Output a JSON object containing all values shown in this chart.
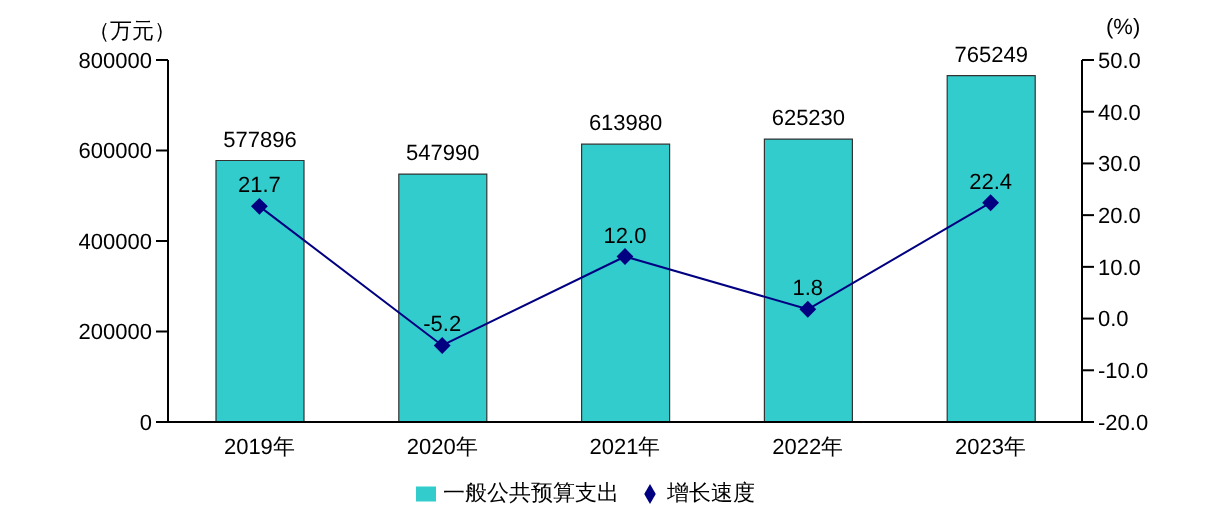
{
  "chart_data": {
    "type": "bar",
    "ylabel": "（万元）",
    "y2label": "(%)",
    "categories": [
      "2019年",
      "2020年",
      "2021年",
      "2022年",
      "2023年"
    ],
    "series": [
      {
        "name": "一般公共预算支出",
        "color": "#33cccc",
        "values": [
          577896,
          547990,
          613980,
          625230,
          765249
        ],
        "value_labels": [
          "577896",
          "547990",
          "613980",
          "625230",
          "765249"
        ]
      },
      {
        "name": "增长速度",
        "type": "line",
        "axis": "y2",
        "color": "#000080",
        "values": [
          21.7,
          -5.2,
          12.0,
          1.8,
          22.4
        ],
        "value_labels": [
          "21.7",
          "-5.2",
          "12.0",
          "1.8",
          "22.4"
        ]
      }
    ],
    "ylim": [
      0,
      800000
    ],
    "yticks": [
      0,
      200000,
      400000,
      600000,
      800000
    ],
    "y2lim": [
      -20,
      50
    ],
    "y2ticks": [
      {
        "value": -20,
        "label": "-20.0"
      },
      {
        "value": -10,
        "label": "-10.0"
      },
      {
        "value": 0,
        "label": "0.0"
      },
      {
        "value": 10,
        "label": "10.0"
      },
      {
        "value": 20,
        "label": "20.0"
      },
      {
        "value": 30,
        "label": "30.0"
      },
      {
        "value": 40,
        "label": "40.0"
      },
      {
        "value": 50,
        "label": "50.0"
      }
    ],
    "marker": "diamond",
    "grid": false,
    "legend": "bottom"
  }
}
